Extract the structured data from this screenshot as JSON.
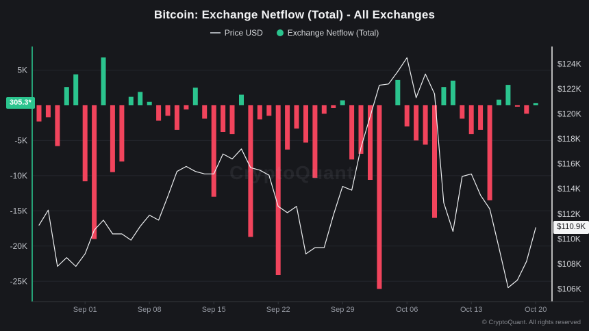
{
  "header": {
    "title": "Bitcoin: Exchange Netflow (Total) - All Exchanges"
  },
  "chart_data": {
    "type": "mixed",
    "title": "Bitcoin: Exchange Netflow (Total) - All Exchanges",
    "watermark": "CryptoQuant",
    "footer": "© CryptoQuant. All rights reserved",
    "legend_position": "top-center",
    "legend": [
      {
        "label": "Price USD",
        "marker": "line-dash"
      },
      {
        "label": "Exchange Netflow (Total)",
        "marker": "dot"
      }
    ],
    "x": {
      "dates": [
        "Aug 27",
        "Aug 28",
        "Aug 29",
        "Aug 30",
        "Aug 31",
        "Sep 01",
        "Sep 02",
        "Sep 03",
        "Sep 04",
        "Sep 05",
        "Sep 06",
        "Sep 07",
        "Sep 08",
        "Sep 09",
        "Sep 10",
        "Sep 11",
        "Sep 12",
        "Sep 13",
        "Sep 14",
        "Sep 15",
        "Sep 16",
        "Sep 17",
        "Sep 18",
        "Sep 19",
        "Sep 20",
        "Sep 21",
        "Sep 22",
        "Sep 23",
        "Sep 24",
        "Sep 25",
        "Sep 26",
        "Sep 27",
        "Sep 28",
        "Sep 29",
        "Sep 30",
        "Oct 01",
        "Oct 02",
        "Oct 03",
        "Oct 04",
        "Oct 05",
        "Oct 06",
        "Oct 07",
        "Oct 08",
        "Oct 09",
        "Oct 10",
        "Oct 11",
        "Oct 12",
        "Oct 13",
        "Oct 14",
        "Oct 15",
        "Oct 16",
        "Oct 17",
        "Oct 18",
        "Oct 19",
        "Oct 20"
      ],
      "tick_labels": [
        "Sep 01",
        "Sep 08",
        "Sep 15",
        "Sep 22",
        "Sep 29",
        "Oct 06",
        "Oct 13",
        "Oct 20"
      ],
      "tick_day_indices": [
        5,
        12,
        19,
        26,
        33,
        40,
        47,
        54
      ]
    },
    "series": [
      {
        "name": "Price USD",
        "type": "line",
        "axis": "right",
        "unit": "USD thousands",
        "values": [
          111.1,
          112.3,
          107.8,
          108.5,
          107.8,
          108.8,
          110.7,
          111.5,
          110.4,
          110.4,
          109.9,
          111.0,
          111.9,
          111.5,
          113.4,
          115.4,
          115.8,
          115.4,
          115.2,
          115.2,
          116.8,
          116.4,
          117.2,
          115.7,
          115.5,
          115.1,
          112.6,
          112.1,
          112.6,
          108.8,
          109.3,
          109.3,
          111.9,
          114.2,
          113.9,
          117.3,
          119.8,
          122.3,
          122.4,
          123.4,
          124.5,
          121.3,
          123.2,
          121.6,
          112.9,
          110.6,
          115.0,
          115.2,
          113.5,
          112.4,
          109.3,
          106.1,
          106.7,
          108.2,
          110.9
        ]
      },
      {
        "name": "Exchange Netflow (Total)",
        "type": "bar",
        "axis": "left",
        "unit": "BTC thousands",
        "values": [
          -2.3,
          -1.7,
          -5.8,
          2.6,
          4.4,
          -10.8,
          -19.0,
          6.8,
          -9.5,
          -8.0,
          1.2,
          1.9,
          0.5,
          -2.2,
          -1.5,
          -3.5,
          -0.6,
          2.5,
          -1.9,
          -13.0,
          -3.8,
          -4.1,
          1.5,
          -18.7,
          -2.0,
          -1.5,
          -24.1,
          -6.3,
          -3.3,
          -5.3,
          -10.3,
          -1.2,
          -0.4,
          0.7,
          -7.7,
          -6.9,
          -10.6,
          -26.1,
          0,
          3.6,
          -3.0,
          -5.0,
          -5.6,
          -16.0,
          2.6,
          3.5,
          -1.9,
          -4.1,
          -3.5,
          -13.5,
          0.8,
          2.9,
          -0.2,
          -1.2,
          0.3
        ]
      }
    ],
    "left_axis": {
      "title": "Exchange Netflow (Total)",
      "range": [
        -27.5,
        8.35
      ],
      "ticks": [
        {
          "value": 5,
          "label": "5K"
        },
        {
          "value": -5,
          "label": "-5K"
        },
        {
          "value": -10,
          "label": "-10K"
        },
        {
          "value": -15,
          "label": "-15K"
        },
        {
          "value": -20,
          "label": "-20K"
        },
        {
          "value": -25,
          "label": "-25K"
        }
      ],
      "current_badge": {
        "label": "305.3*",
        "value": 0.3053
      }
    },
    "right_axis": {
      "title": "Price USD",
      "range": [
        105.2,
        125.4
      ],
      "ticks": [
        {
          "value": 124,
          "label": "$124K"
        },
        {
          "value": 122,
          "label": "$122K"
        },
        {
          "value": 120,
          "label": "$120K"
        },
        {
          "value": 118,
          "label": "$118K"
        },
        {
          "value": 116,
          "label": "$116K"
        },
        {
          "value": 114,
          "label": "$114K"
        },
        {
          "value": 112,
          "label": "$112K"
        },
        {
          "value": 110,
          "label": "$110K"
        },
        {
          "value": 108,
          "label": "$108K"
        },
        {
          "value": 106,
          "label": "$106K"
        }
      ],
      "current_badge": {
        "label": "$110.9K",
        "value": 110.9
      }
    },
    "grid": "horizontal-left-ticks",
    "colors": {
      "background": "#17181c",
      "bar_negative": "#f1445c",
      "bar_positive": "#2bc48e",
      "price_line": "#eef0f2",
      "left_axis_line": "#2bc48e",
      "right_axis_line": "#ffffff",
      "bottom_axis_line": "#34373d",
      "grid": "#24262c",
      "left_tick_text": "#c3c6cc",
      "right_tick_text": "#d2d4d8",
      "x_tick_text": "#9397a0",
      "legend_dash": "#a7abb1",
      "badge_netflow_bg": "#2bc48e",
      "badge_price_bg": "#f4f5f6"
    }
  }
}
